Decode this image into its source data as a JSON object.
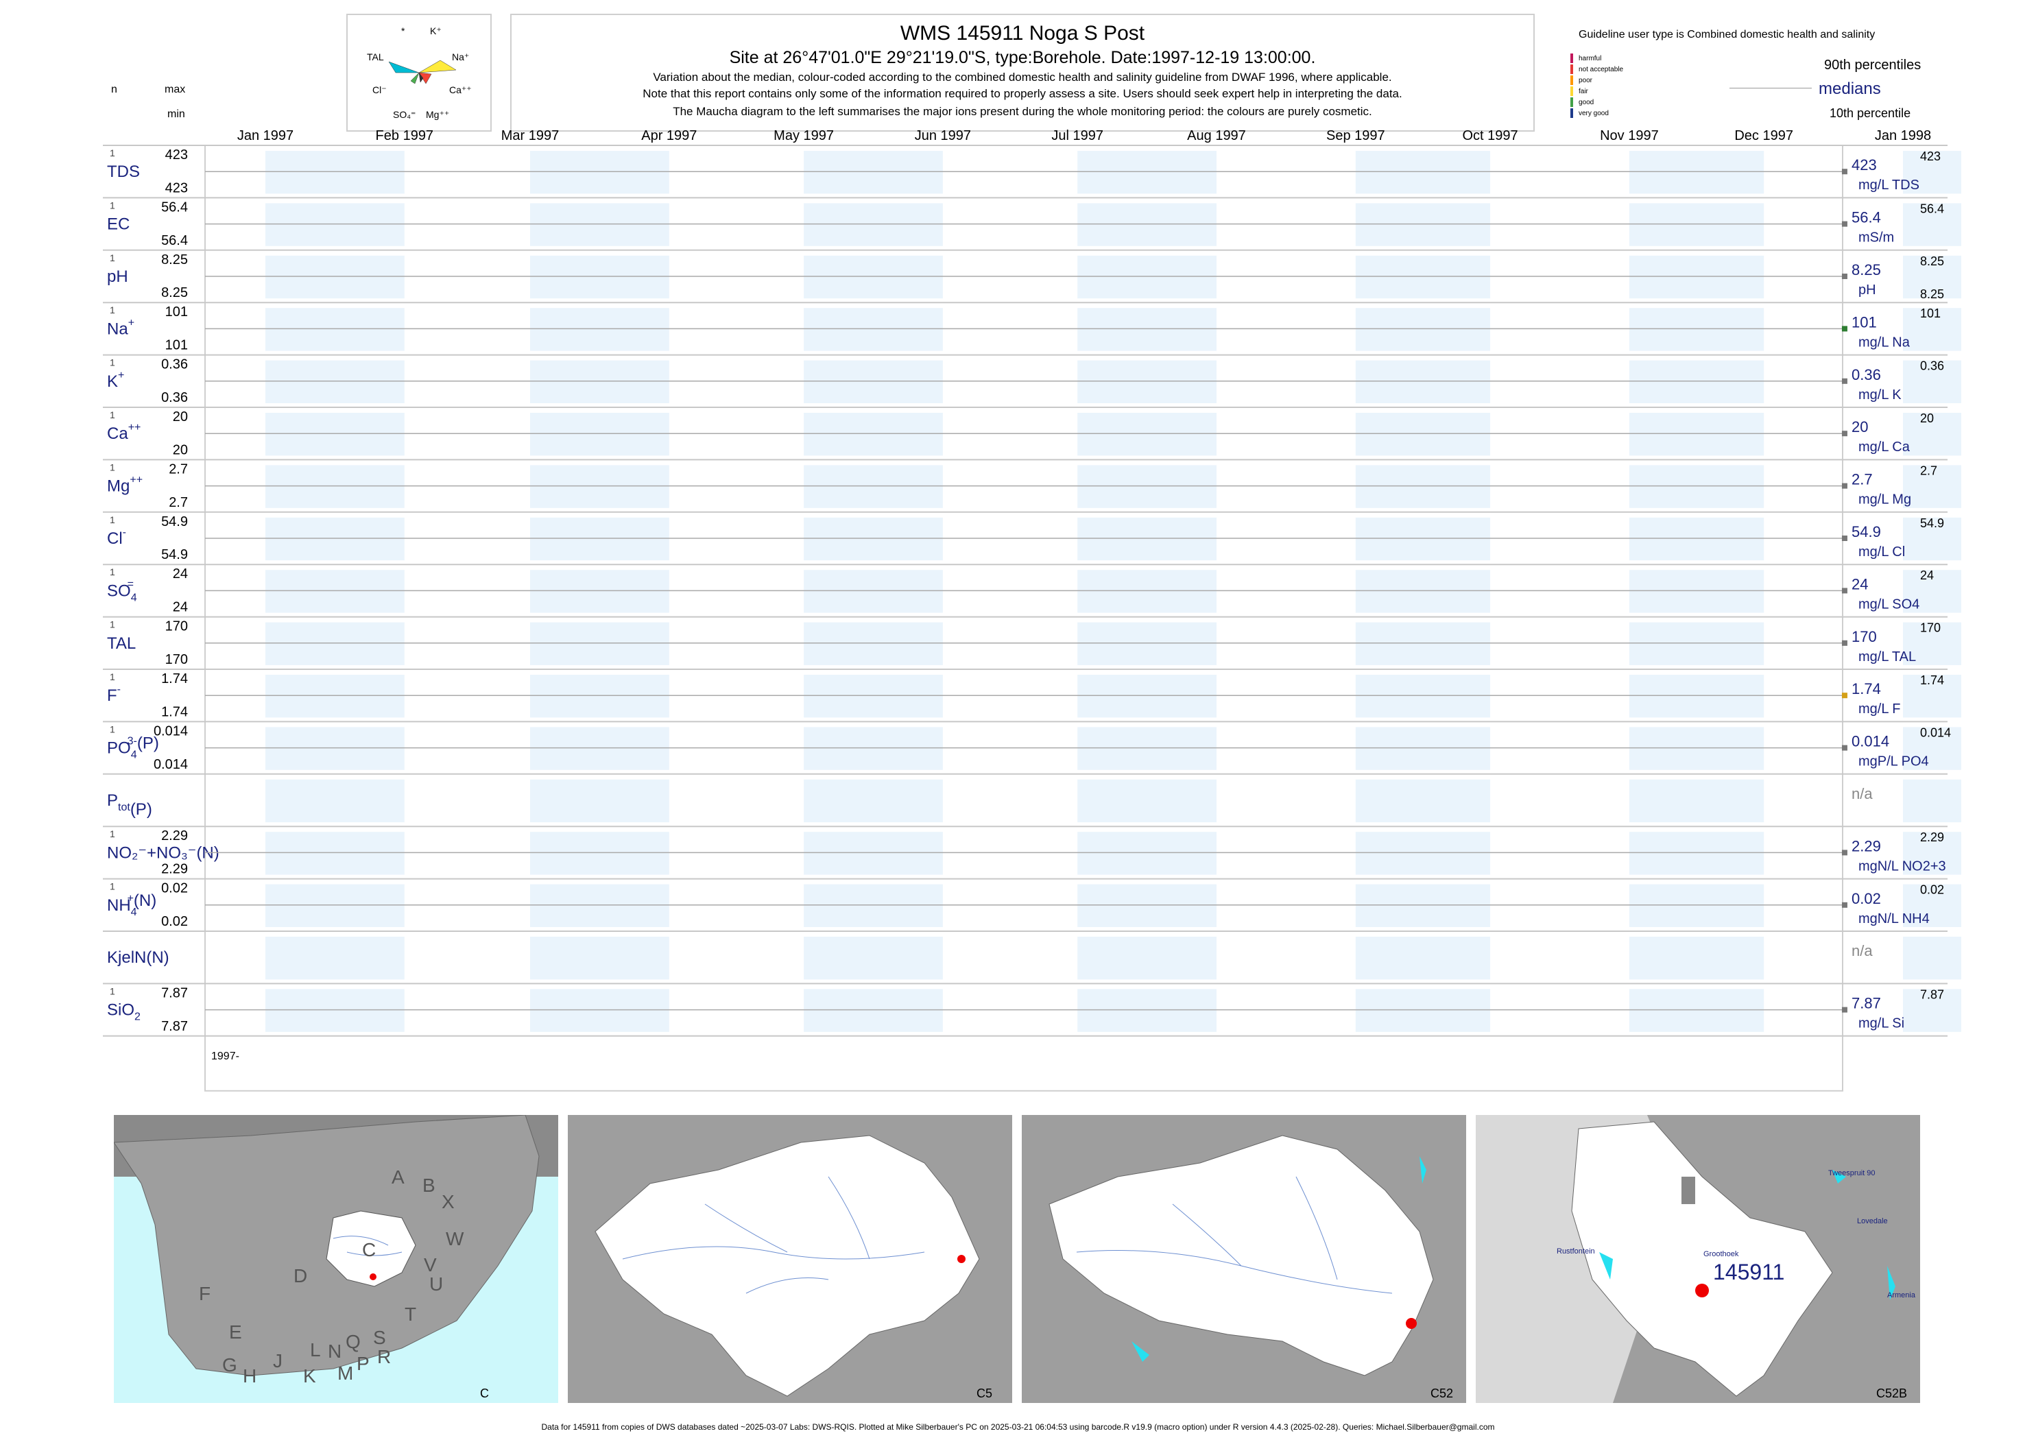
{
  "header": {
    "title": "WMS 145911  Noga S Post",
    "subtitle": "Site at 26°47'01.0\"E 29°21'19.0\"S, type:Borehole. Date:1997-12-19 13:00:00.",
    "note1": "Variation about the median,  colour-coded according to the combined domestic health and salinity guideline from DWAF 1996, where applicable.",
    "note2": "Note that this report contains only some of the information required to properly assess a site. Users should seek expert help in interpreting the data.",
    "note3": "The Maucha diagram to the left summarises the major ions present during the whole monitoring period: the colours are purely cosmetic.",
    "col_n": "n",
    "col_max": "max",
    "col_min": "min"
  },
  "maucha": {
    "labels": {
      "k": "K⁺",
      "star": "*",
      "tal": "TAL",
      "na": "Na⁺",
      "cl": "Cl⁻",
      "ca": "Ca⁺⁺",
      "so4": "SO₄⁼",
      "mg": "Mg⁺⁺"
    },
    "colors": [
      "#ffeb3b",
      "#00bcd4",
      "#4caf50",
      "#f44336",
      "#ff9800",
      "#9c27b0"
    ]
  },
  "legend": {
    "guideline_title": "Guideline user type is Combined domestic health and salinity",
    "levels": [
      {
        "label": "harmful",
        "color": "#c2185b"
      },
      {
        "label": "not acceptable",
        "color": "#e53935"
      },
      {
        "label": "poor",
        "color": "#ff9800"
      },
      {
        "label": "fair",
        "color": "#fdd835"
      },
      {
        "label": "good",
        "color": "#43a047"
      },
      {
        "label": "very good",
        "color": "#1e3a8a"
      }
    ],
    "p90": "90th percentiles",
    "medians": "medians",
    "p10": "10th percentile"
  },
  "chart_data": {
    "type": "scatter",
    "x_months": [
      "Jan 1997",
      "Feb 1997",
      "Mar 1997",
      "Apr 1997",
      "May 1997",
      "Jun 1997",
      "Jul 1997",
      "Aug 1997",
      "Sep 1997",
      "Oct 1997",
      "Nov 1997",
      "Dec 1997",
      "Jan 1998"
    ],
    "xlim": [
      "1997-01-01",
      "1998-01-01"
    ],
    "year_label": "1997-",
    "sample_date": "1997-12-19",
    "rows": [
      {
        "label": "TDS",
        "sup": "",
        "sub": "",
        "n": "1",
        "max": "423",
        "min": "423",
        "value": 423,
        "median": "423",
        "unit": "mg/L TDS",
        "p90": "423",
        "p10": "",
        "color": "#777777"
      },
      {
        "label": "EC",
        "sup": "",
        "sub": "",
        "n": "1",
        "max": "56.4",
        "min": "56.4",
        "value": 56.4,
        "median": "56.4",
        "unit": "mS/m",
        "p90": "56.4",
        "p10": "",
        "color": "#777777"
      },
      {
        "label": "pH",
        "sup": "",
        "sub": "",
        "n": "1",
        "max": "8.25",
        "min": "8.25",
        "value": 8.25,
        "median": "8.25",
        "unit": "pH",
        "p90": "8.25",
        "p10": "8.25",
        "color": "#777777"
      },
      {
        "label": "Na",
        "sup": "+",
        "sub": "",
        "n": "1",
        "max": "101",
        "min": "101",
        "value": 101,
        "median": "101",
        "unit": "mg/L Na",
        "p90": "101",
        "p10": "",
        "color": "#2e7d32"
      },
      {
        "label": "K",
        "sup": "+",
        "sub": "",
        "n": "1",
        "max": "0.36",
        "min": "0.36",
        "value": 0.36,
        "median": "0.36",
        "unit": "mg/L K",
        "p90": "0.36",
        "p10": "",
        "color": "#777777"
      },
      {
        "label": "Ca",
        "sup": "++",
        "sub": "",
        "n": "1",
        "max": "20",
        "min": "20",
        "value": 20,
        "median": "20",
        "unit": "mg/L Ca",
        "p90": "20",
        "p10": "",
        "color": "#777777"
      },
      {
        "label": "Mg",
        "sup": "++",
        "sub": "",
        "n": "1",
        "max": "2.7",
        "min": "2.7",
        "value": 2.7,
        "median": "2.7",
        "unit": "mg/L Mg",
        "p90": "2.7",
        "p10": "",
        "color": "#777777"
      },
      {
        "label": "Cl",
        "sup": "-",
        "sub": "",
        "n": "1",
        "max": "54.9",
        "min": "54.9",
        "value": 54.9,
        "median": "54.9",
        "unit": "mg/L Cl",
        "p90": "54.9",
        "p10": "",
        "color": "#777777"
      },
      {
        "label": "SO",
        "sup": "=",
        "sub": "4",
        "n": "1",
        "max": "24",
        "min": "24",
        "value": 24,
        "median": "24",
        "unit": "mg/L SO4",
        "p90": "24",
        "p10": "",
        "color": "#777777"
      },
      {
        "label": "TAL",
        "sup": "",
        "sub": "",
        "n": "1",
        "max": "170",
        "min": "170",
        "value": 170,
        "median": "170",
        "unit": "mg/L TAL",
        "p90": "170",
        "p10": "",
        "color": "#777777"
      },
      {
        "label": "F",
        "sup": "-",
        "sub": "",
        "n": "1",
        "max": "1.74",
        "min": "1.74",
        "value": 1.74,
        "median": "1.74",
        "unit": "mg/L F",
        "p90": "1.74",
        "p10": "",
        "color": "#d4a017"
      },
      {
        "label": "PO",
        "sup": "3-",
        "sub": "4",
        "suffix": "(P)",
        "n": "1",
        "max": "0.014",
        "min": "0.014",
        "value": 0.014,
        "median": "0.014",
        "unit": "mgP/L PO4",
        "p90": "0.014",
        "p10": "",
        "color": "#777777"
      },
      {
        "label": "P",
        "sup": "",
        "sub": "tot",
        "suffix": "(P)",
        "n": "",
        "max": "",
        "min": "",
        "value": null,
        "median": "n/a",
        "unit": "",
        "p90": "",
        "p10": "",
        "color": "#777777"
      },
      {
        "label": "NO₂⁻+NO₃⁻(N)",
        "sup": "",
        "sub": "",
        "n": "1",
        "max": "2.29",
        "min": "2.29",
        "value": 2.29,
        "median": "2.29",
        "unit": "mgN/L NO2+3",
        "p90": "2.29",
        "p10": "",
        "color": "#777777"
      },
      {
        "label": "NH",
        "sup": "+",
        "sub": "4",
        "suffix": "(N)",
        "n": "1",
        "max": "0.02",
        "min": "0.02",
        "value": 0.02,
        "median": "0.02",
        "unit": "mgN/L NH4",
        "p90": "0.02",
        "p10": "",
        "color": "#777777"
      },
      {
        "label": "KjelN(N)",
        "sup": "",
        "sub": "",
        "n": "",
        "max": "",
        "min": "",
        "value": null,
        "median": "n/a",
        "unit": "",
        "p90": "",
        "p10": "",
        "color": "#777777"
      },
      {
        "label": "SiO",
        "sup": "",
        "sub": "2",
        "n": "1",
        "max": "7.87",
        "min": "7.87",
        "value": 7.87,
        "median": "7.87",
        "unit": "mg/L Si",
        "p90": "7.87",
        "p10": "",
        "color": "#777777"
      }
    ]
  },
  "maps": [
    {
      "label": "C",
      "regions": [
        "A",
        "B",
        "X",
        "W",
        "C",
        "V",
        "U",
        "D",
        "T",
        "F",
        "E",
        "S",
        "R",
        "Q",
        "N",
        "L",
        "P",
        "M",
        "K",
        "J",
        "H",
        "G"
      ]
    },
    {
      "label": "C5"
    },
    {
      "label": "C52"
    },
    {
      "label": "C52B",
      "site_id": "145911",
      "places": [
        "Tweespruit 90",
        "Lovedale",
        "Rustfontein",
        "Groothoek",
        "Armenia"
      ]
    }
  ],
  "footer": "Data for 145911 from copies of DWS databases dated ~2025-03-07 Labs: DWS-RQIS. Plotted at Mike Silberbauer's PC on 2025-03-21 06:04:53 using barcode.R v19.9 (macro option) under R version 4.4.3 (2025-02-28). Queries: Michael.Silberbauer@gmail.com"
}
